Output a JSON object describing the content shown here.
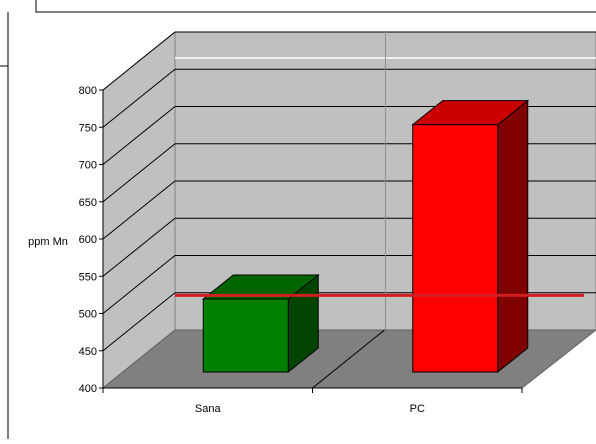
{
  "chart_data": {
    "type": "bar",
    "categories": [
      "Sana",
      "PC"
    ],
    "values": [
      541,
      775
    ],
    "ylabel": "ppm Mn",
    "ylim": [
      400,
      800
    ],
    "yticks": [
      400,
      450,
      500,
      550,
      600,
      650,
      700,
      750,
      800
    ],
    "reference_line": 523,
    "grid": true,
    "style": "3d-column",
    "colors": {
      "bars": [
        "#008000",
        "#ff0000"
      ],
      "bar_tops": [
        "#006400",
        "#cc0000"
      ],
      "bar_sides": [
        "#004400",
        "#800000"
      ],
      "reference_line": "#d22020",
      "back_wall": "#c0c0c0",
      "side_wall": "#c0c0c0",
      "floor": "#808080"
    }
  }
}
